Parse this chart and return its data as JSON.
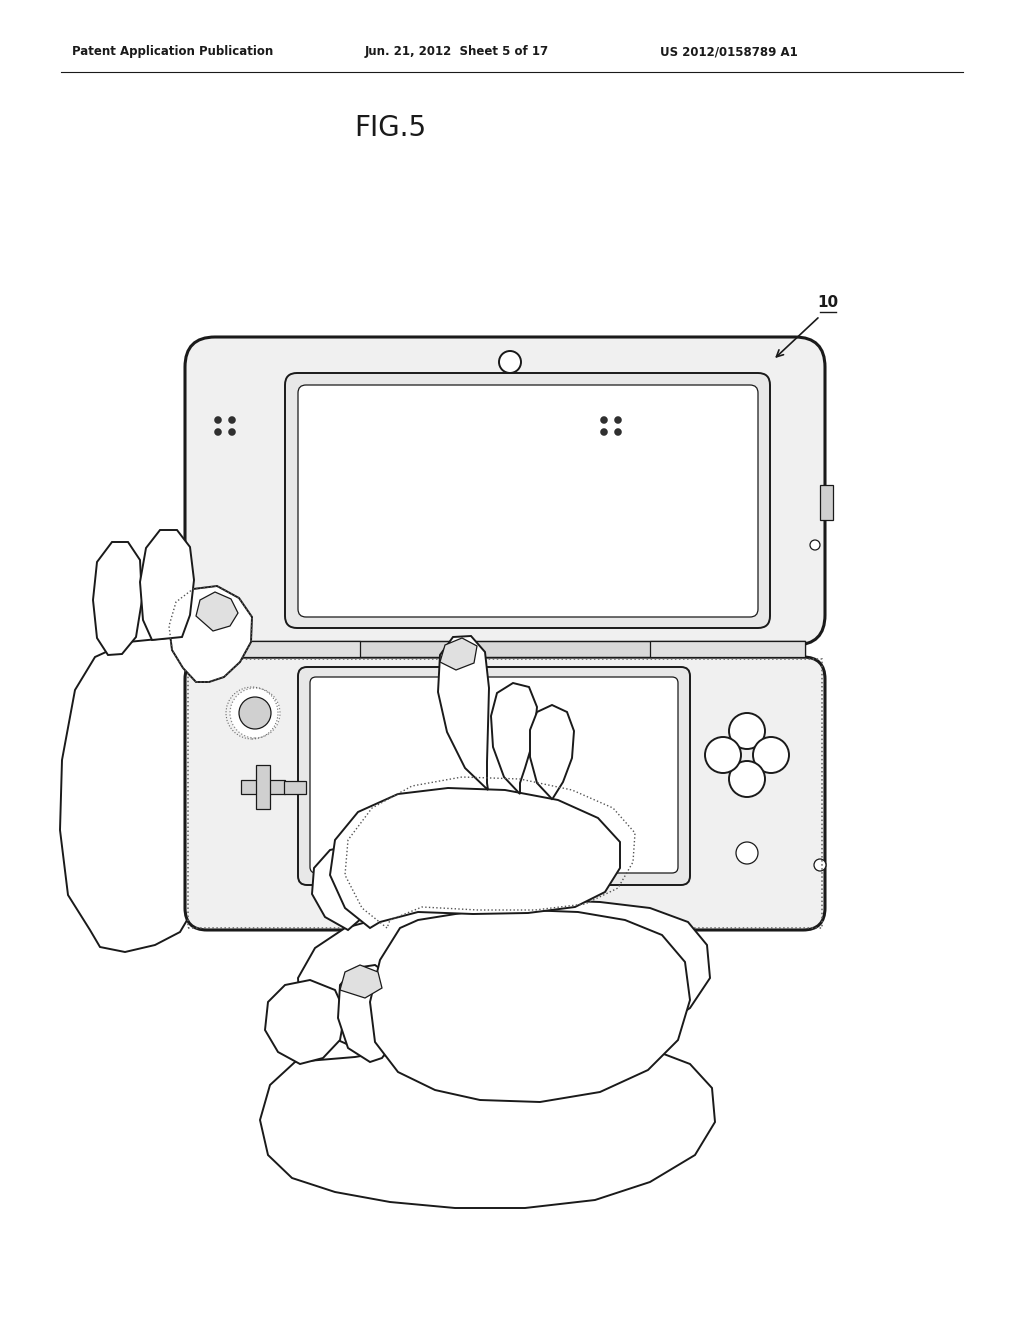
{
  "header_left": "Patent Application Publication",
  "header_mid": "Jun. 21, 2012  Sheet 5 of 17",
  "header_right": "US 2012/0158789 A1",
  "fig_label": "FIG.5",
  "device_label": "10",
  "bg_color": "#ffffff",
  "line_color": "#1a1a1a",
  "gray_fill": "#f0f0f0",
  "screen_fill": "#ffffff",
  "bezel_fill": "#e8e8e8"
}
